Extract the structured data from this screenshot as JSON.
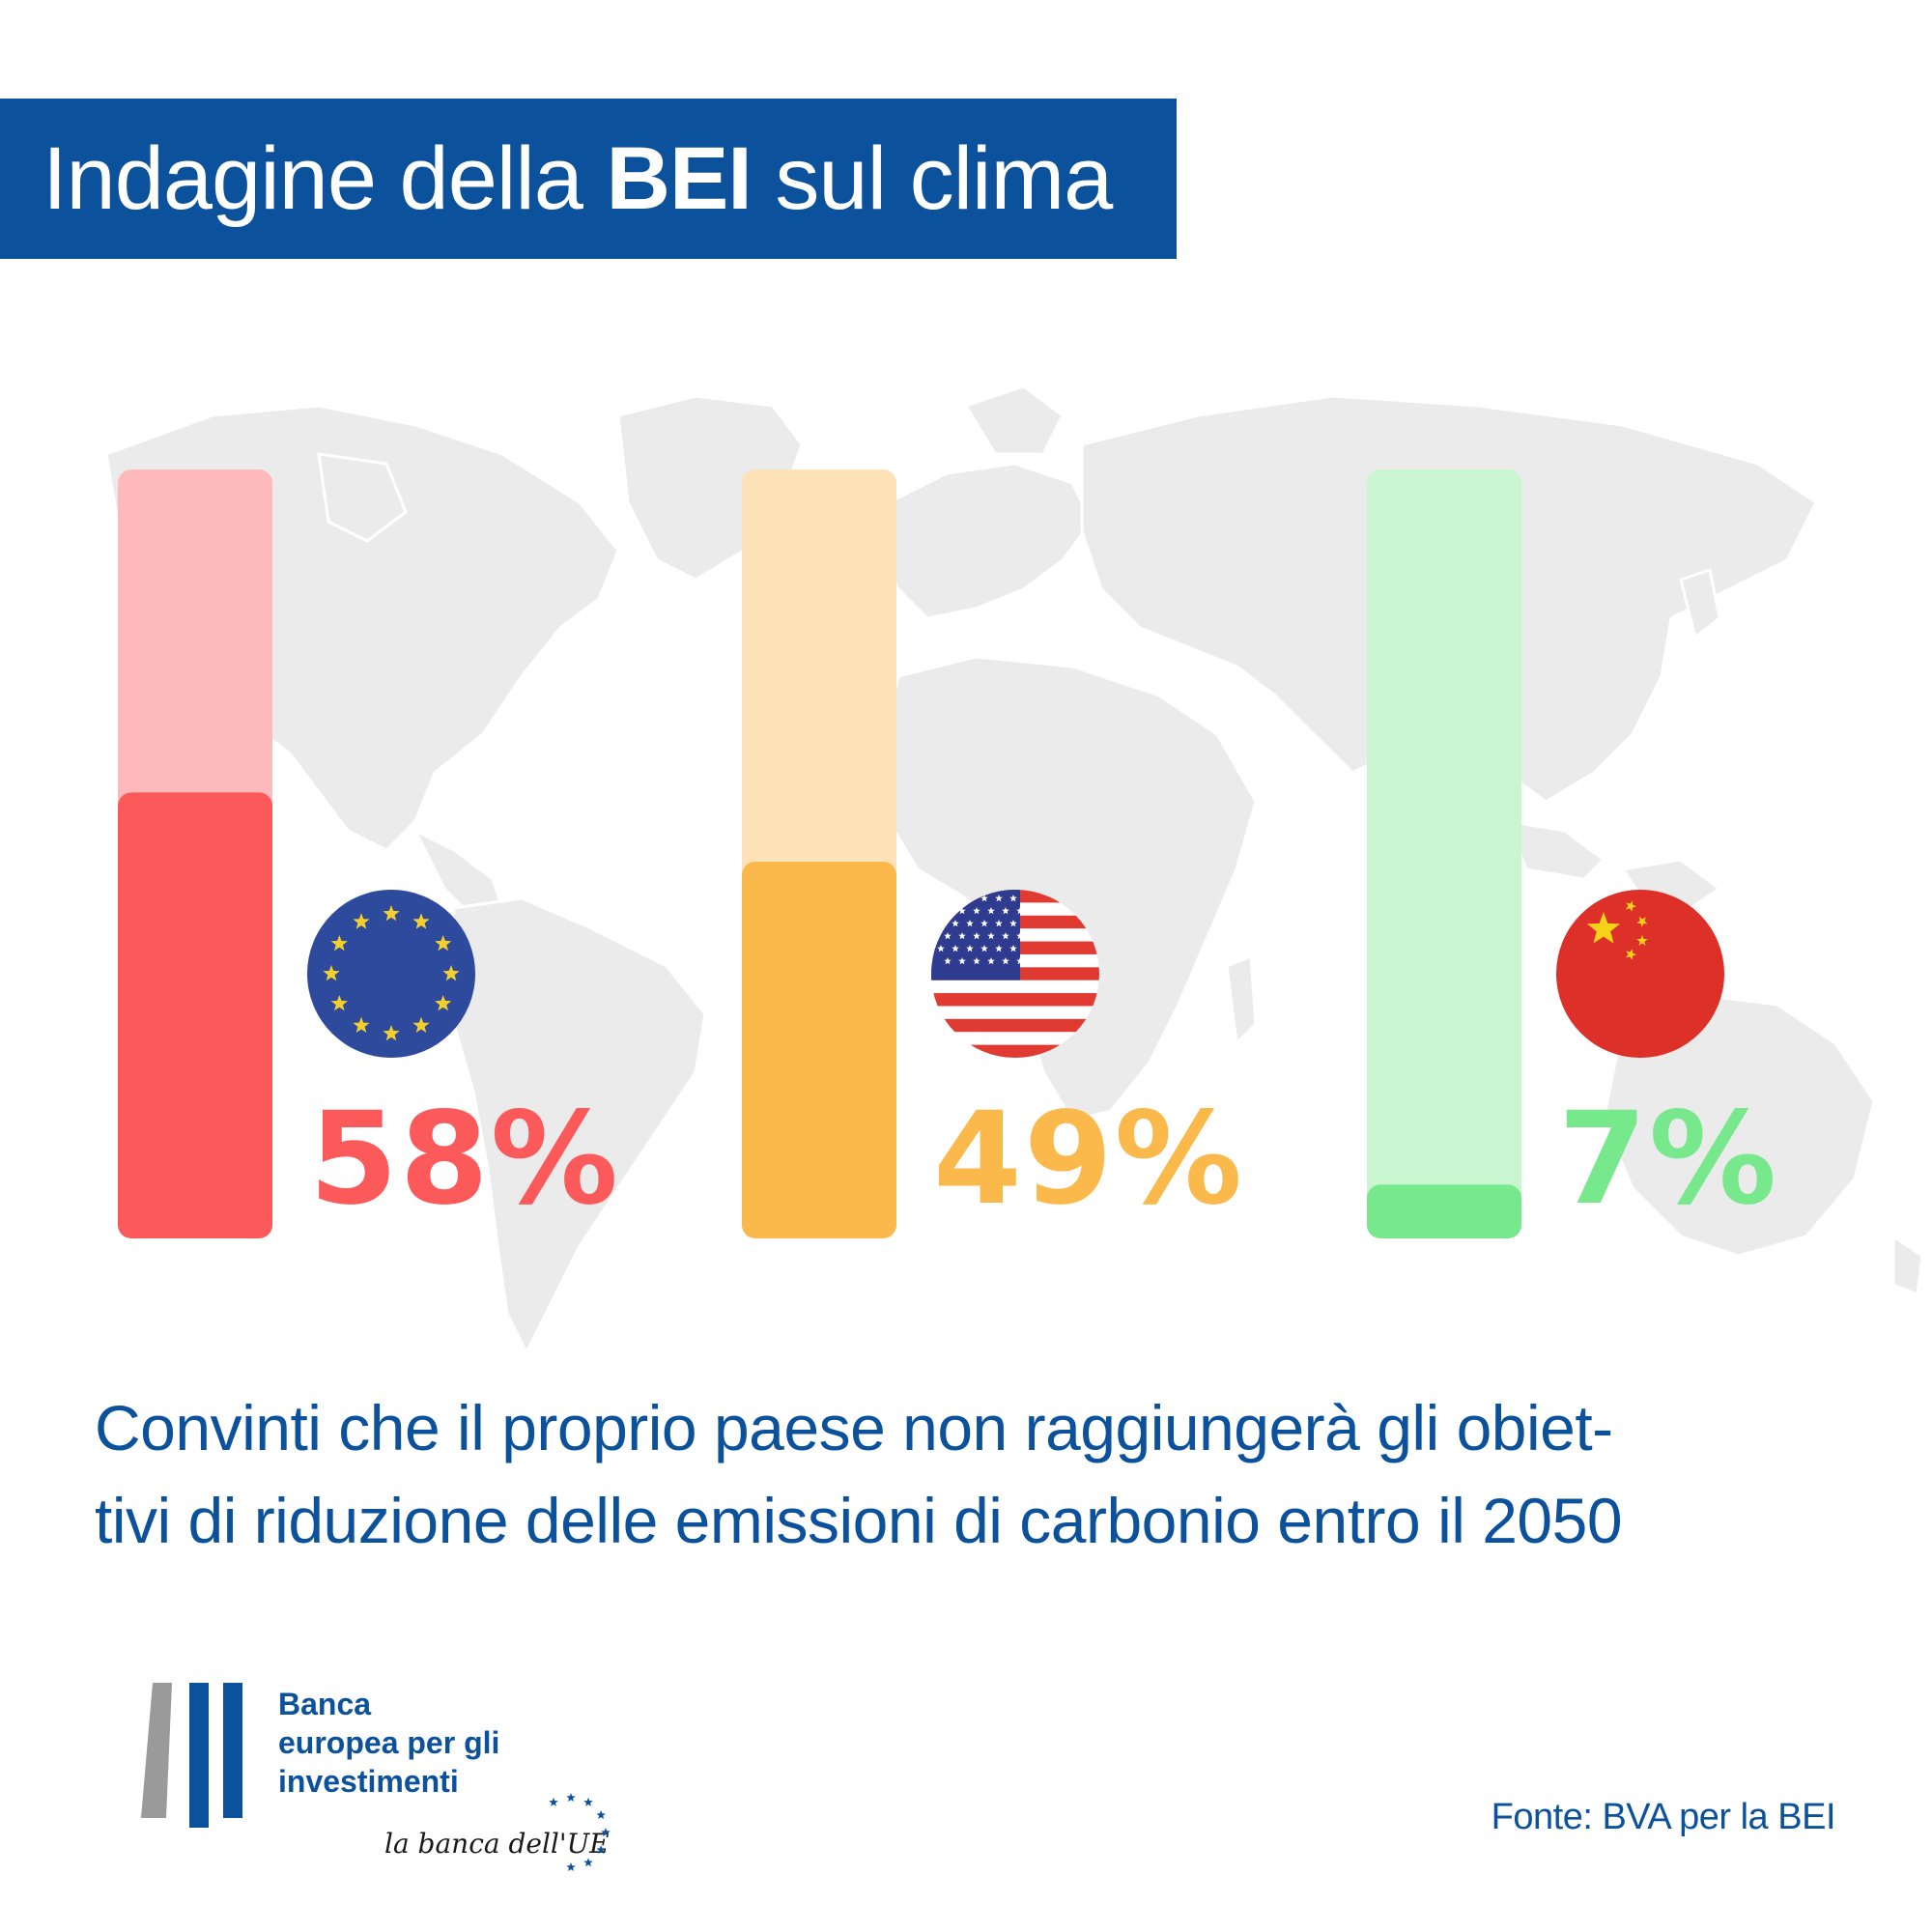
{
  "header": {
    "title_pre": "Indagine della ",
    "title_bold": "BEI",
    "title_post": " sul clima"
  },
  "chart_data": {
    "type": "bar",
    "categories": [
      "UE",
      "Stati Uniti",
      "Cina"
    ],
    "values": [
      58,
      49,
      7
    ],
    "value_labels": [
      "58%",
      "49%",
      "7%"
    ],
    "ylim": [
      0,
      100
    ],
    "colors": {
      "fill": [
        "#fc5a5a",
        "#fbb94c",
        "#78e88c"
      ],
      "track": [
        "#fdb9bb",
        "#fce2b6",
        "#c9f6d1"
      ]
    },
    "flags": [
      "eu-flag-icon",
      "us-flag-icon",
      "china-flag-icon"
    ]
  },
  "caption": {
    "line1": "Convinti che il proprio paese non raggiungerà gli obiet-",
    "line2": "tivi di riduzione delle emissioni di carbonio entro il 2050"
  },
  "logo": {
    "line1": "Banca",
    "line2": "europea per gli",
    "line3": "investimenti",
    "tagline": "la banca dell'UE"
  },
  "source": "Fonte: BVA per la BEI",
  "colors": {
    "brand_blue": "#0b519b",
    "map_grey": "#ebebeb"
  }
}
